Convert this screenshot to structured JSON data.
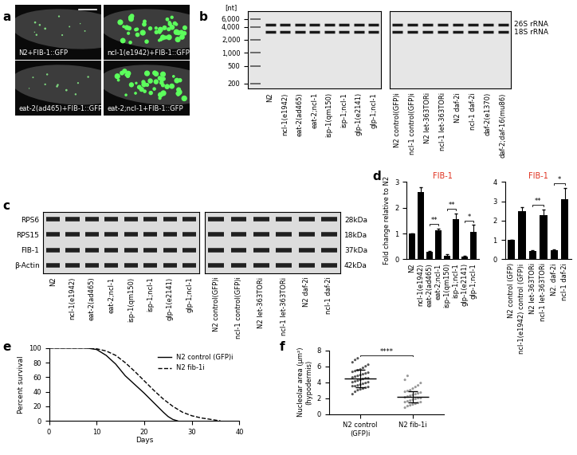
{
  "panel_labels": [
    "a",
    "b",
    "c",
    "d",
    "e",
    "f"
  ],
  "panel_a": {
    "images": [
      "N2+FIB-1::GFP",
      "ncl-1(e1942)+FIB-1::GFP",
      "eat-2(ad465)+FIB-1::GFP",
      "eat-2;ncl-1+FIB-1::GFP"
    ]
  },
  "panel_b": {
    "unit_label": "[nt]",
    "log": "y",
    "ylim": [
      150,
      9000
    ],
    "yticks": [
      {
        "value": 6000,
        "label": "6,000"
      },
      {
        "value": 4000,
        "label": "4,000"
      },
      {
        "value": 2000,
        "label": "2,000"
      },
      {
        "value": 1000,
        "label": "1,000"
      },
      500,
      200
    ],
    "bands": [
      {
        "label": "26S rRNA",
        "nt": 4500
      },
      {
        "label": "18S rRNA",
        "nt": 3000
      }
    ],
    "gels": [
      {
        "categories": [
          null,
          "N2",
          "ncl-1(e1942)",
          "eat-2(ad465)",
          "eat-2;ncl-1",
          "isp-1(qm150)",
          "isp-1;ncl-1",
          "glp-1(e2141)",
          "glp-1;ncl-1"
        ]
      },
      {
        "categories": [
          "N2 control(GFP)i",
          "ncl-1 control(GFP)i",
          "N2 let-363TORi",
          "ncl-1 let-363TORi",
          "N2 daf-2i",
          "ncl-1 daf-2i",
          "daf-2(e1370)",
          "daf-2;daf-16(mu86)"
        ]
      }
    ]
  },
  "panel_c": {
    "rows": [
      "RPS6",
      "RPS15",
      "FIB-1",
      "β-Actin"
    ],
    "sizes": [
      "28kDa",
      "18kDa",
      "37kDa",
      "42kDa"
    ],
    "blots": [
      {
        "categories": [
          "N2",
          "ncl-1(e1942)",
          "eat-2(ad465)",
          "eat-2;ncl-1",
          "isp-1(qm150)",
          "isp-1;ncl-1",
          "glp-1(e2141)",
          "glp-1;ncl-1"
        ]
      },
      {
        "categories": [
          "N2 control(GFP)i",
          "ncl-1 control(GFP)i",
          "N2 let-363TORi",
          "ncl-1 let-363TORi",
          "N2 daf-2i",
          "ncl-1 daf-2i"
        ]
      }
    ]
  },
  "chart_data": [
    {
      "type": "bar",
      "title": "FIB-1",
      "y_label": "Fold change relative to N2",
      "color": "#000000",
      "categories": [
        "N2",
        "ncl-1(e1942)",
        "eat-2(ad465)",
        "eat-2;ncl-1",
        "isp-1(qm150)",
        "isp-1;ncl-1",
        "glp-1(e2141)",
        "glp-1;ncl-1"
      ],
      "values": [
        1.0,
        2.6,
        0.3,
        1.12,
        0.15,
        1.55,
        0.1,
        1.08
      ],
      "errors": [
        0.0,
        0.2,
        0.03,
        0.08,
        0.05,
        0.22,
        0.05,
        0.25
      ],
      "ylim": [
        0,
        3
      ],
      "yticks": [
        0,
        1,
        2,
        3
      ],
      "significance": [
        {
          "between": [
            2,
            3
          ],
          "label": "**"
        },
        {
          "between": [
            4,
            5
          ],
          "label": "**"
        },
        {
          "between": [
            6,
            7
          ],
          "label": "*"
        }
      ]
    },
    {
      "type": "bar",
      "title": "FIB-1",
      "color": "#000000",
      "categories": [
        "N2 control (GFP)",
        "ncl-1(e1942) control (GFP)i",
        "N2 let-363TORi",
        "ncl-1 let-363TORi",
        "N2. daf-2i",
        "ncl-1 daf-2i"
      ],
      "values": [
        1.0,
        2.5,
        0.45,
        2.28,
        0.48,
        3.1
      ],
      "errors": [
        0.0,
        0.2,
        0.03,
        0.3,
        0.03,
        0.6
      ],
      "ylim": [
        0,
        4
      ],
      "yticks": [
        0,
        1,
        2,
        3,
        4
      ],
      "significance": [
        {
          "between": [
            2,
            3
          ],
          "label": "**"
        },
        {
          "between": [
            4,
            5
          ],
          "label": "*"
        }
      ]
    },
    {
      "type": "line",
      "x_label": "Days",
      "y_label": "Percent survival",
      "legend": "upper right",
      "xlim": [
        0,
        40
      ],
      "xticks": [
        0,
        10,
        20,
        30,
        40
      ],
      "ylim": [
        0,
        100
      ],
      "yticks": [
        0,
        20,
        40,
        60,
        80,
        100
      ],
      "series": [
        {
          "name": "N2 control (GFP)i",
          "color": "#000000",
          "line_style": "solid",
          "x": [
            0,
            8,
            10,
            12,
            14,
            16,
            18,
            20,
            22,
            24,
            25,
            26,
            27
          ],
          "values": [
            100,
            100,
            98,
            90,
            78,
            62,
            50,
            38,
            25,
            12,
            6,
            2,
            0
          ]
        },
        {
          "name": "N2 fib-1i",
          "color": "#000000",
          "line_style": "dashed",
          "x": [
            0,
            8,
            10,
            12,
            14,
            16,
            18,
            20,
            22,
            24,
            26,
            28,
            30,
            32,
            34,
            36
          ],
          "values": [
            100,
            100,
            99,
            96,
            90,
            80,
            68,
            55,
            42,
            30,
            20,
            12,
            7,
            4,
            2,
            0
          ]
        }
      ]
    },
    {
      "type": "scatter",
      "y_label": "Nucleolar area (μm²)\n(hypodermis)",
      "categories": [
        "N2 control\n(GFP)i",
        "N2 fib-1i"
      ],
      "colors": [
        "#555555",
        "#999999"
      ],
      "points": [
        [
          2.5,
          2.8,
          3.0,
          3.1,
          3.2,
          3.3,
          3.4,
          3.5,
          3.5,
          3.6,
          3.7,
          3.8,
          3.9,
          4.0,
          4.0,
          4.1,
          4.2,
          4.3,
          4.4,
          4.5,
          4.5,
          4.6,
          4.7,
          4.8,
          4.9,
          5.0,
          5.1,
          5.2,
          5.3,
          5.4,
          5.5,
          5.6,
          5.8,
          6.0,
          6.2,
          6.5,
          6.8,
          7.0
        ],
        [
          0.8,
          1.0,
          1.1,
          1.2,
          1.3,
          1.4,
          1.5,
          1.5,
          1.6,
          1.7,
          1.8,
          1.9,
          2.0,
          2.0,
          2.1,
          2.2,
          2.3,
          2.4,
          2.5,
          2.6,
          2.7,
          2.8,
          2.9,
          3.0,
          3.2,
          3.4,
          3.6,
          3.9,
          4.3,
          4.8
        ]
      ],
      "mean": [
        4.5,
        2.2
      ],
      "sd": [
        1.1,
        0.7
      ],
      "ylim": [
        0,
        8
      ],
      "yticks": [
        0,
        2,
        4,
        6,
        8
      ],
      "significance": [
        {
          "between": [
            0,
            1
          ],
          "label": "****"
        }
      ]
    }
  ]
}
